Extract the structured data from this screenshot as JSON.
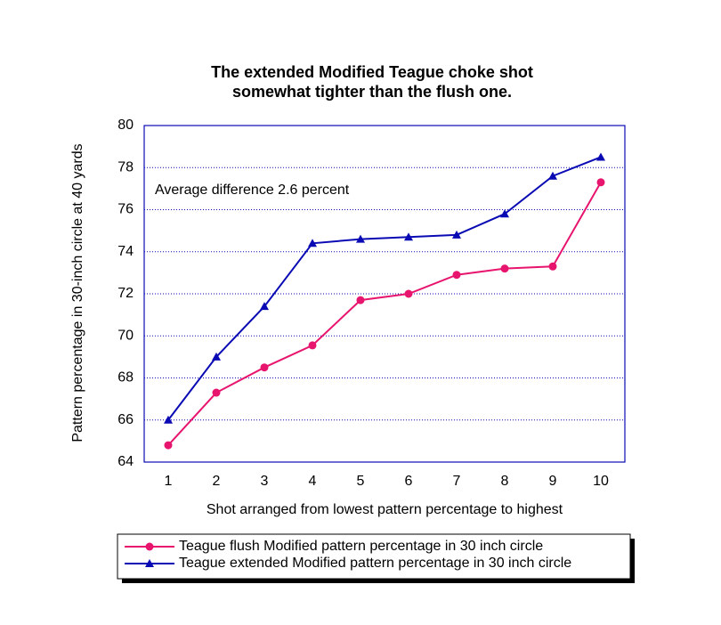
{
  "chart_data": {
    "type": "line",
    "title": [
      "The extended Modified Teague choke shot",
      "somewhat tighter than the flush one."
    ],
    "x_label": "Shot arranged from lowest pattern percentage to highest",
    "y_label": "Pattern percentage in 30-inch circle at 40 yards",
    "annotation": "Average difference 2.6 percent",
    "categories": [
      "1",
      "2",
      "3",
      "4",
      "5",
      "6",
      "7",
      "8",
      "9",
      "10"
    ],
    "series": [
      {
        "name": "Teague flush Modified pattern percentage in 30 inch circle",
        "color": "#e8156e",
        "marker": "circle",
        "values": [
          64.8,
          67.3,
          68.5,
          69.55,
          71.7,
          72.0,
          72.9,
          73.2,
          73.3,
          77.3
        ]
      },
      {
        "name": "Teague extended Modified pattern percentage in 30 inch circle",
        "color": "#0a0ab4",
        "marker": "triangle",
        "values": [
          66.0,
          69.0,
          71.4,
          74.4,
          74.6,
          74.7,
          74.8,
          75.8,
          77.6,
          78.5
        ]
      }
    ],
    "ylim": [
      64,
      80
    ],
    "yticks": [
      64,
      66,
      68,
      70,
      72,
      74,
      76,
      78,
      80
    ],
    "grid": true
  }
}
